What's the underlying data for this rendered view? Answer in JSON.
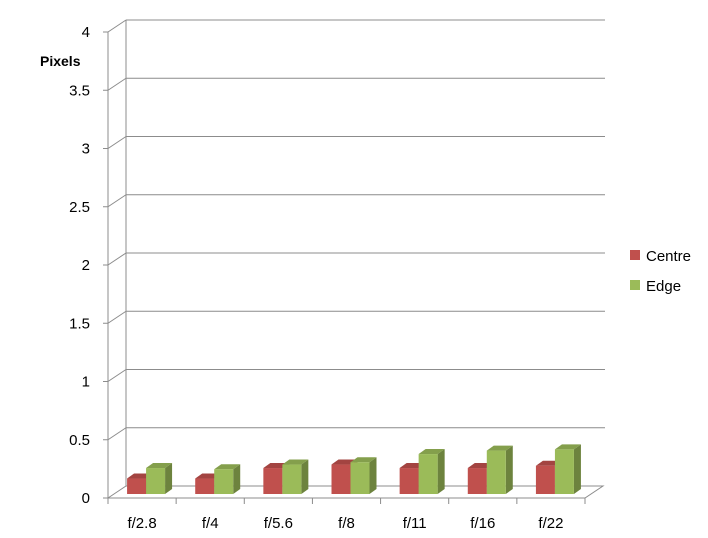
{
  "chart_data": {
    "type": "bar",
    "ylabel": "Pixels",
    "xlabel": "",
    "ylim": [
      0,
      4
    ],
    "yticks": [
      "0",
      "0.5",
      "1",
      "1.5",
      "2",
      "2.5",
      "3",
      "3.5",
      "4"
    ],
    "categories": [
      "f/2.8",
      "f/4",
      "f/5.6",
      "f/8",
      "f/11",
      "f/16",
      "f/22"
    ],
    "series": [
      {
        "name": "Centre",
        "color": "#c0504d",
        "values": [
          0.15,
          0.15,
          0.24,
          0.27,
          0.24,
          0.24,
          0.26
        ]
      },
      {
        "name": "Edge",
        "color": "#9bbb59",
        "values": [
          0.24,
          0.23,
          0.27,
          0.29,
          0.36,
          0.39,
          0.4
        ]
      }
    ],
    "grid": true,
    "legend": "right"
  }
}
